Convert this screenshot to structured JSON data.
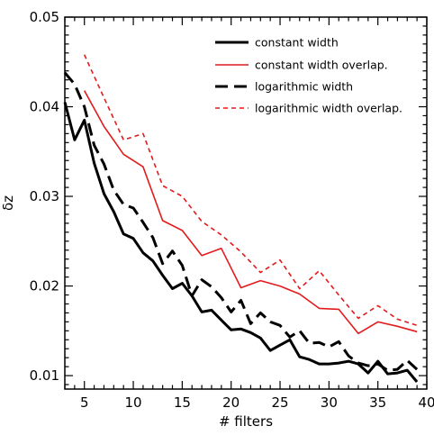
{
  "chart_data": {
    "type": "line",
    "xlabel": "# filters",
    "ylabel": "δz",
    "xlim": [
      3,
      40
    ],
    "ylim": [
      0.0085,
      0.05
    ],
    "xticks": [
      5,
      10,
      15,
      20,
      25,
      30,
      35,
      40
    ],
    "xtick_labels": [
      "5",
      "10",
      "15",
      "20",
      "25",
      "30",
      "35",
      "40"
    ],
    "yticks": [
      0.01,
      0.02,
      0.03,
      0.04,
      0.05
    ],
    "ytick_labels": [
      "0.01",
      "0.02",
      "0.03",
      "0.04",
      "0.05"
    ],
    "grid": false,
    "legend_position": "top-right",
    "series": [
      {
        "name": "constant width",
        "color": "#000000",
        "style": "solid",
        "x": [
          3,
          4,
          5,
          6,
          7,
          8,
          9,
          10,
          11,
          12,
          13,
          14,
          15,
          16,
          17,
          18,
          19,
          20,
          21,
          22,
          23,
          24,
          25,
          26,
          27,
          28,
          29,
          30,
          31,
          32,
          33,
          34,
          35,
          36,
          37,
          38,
          39
        ],
        "y": [
          0.0405,
          0.0363,
          0.0385,
          0.0337,
          0.0303,
          0.0283,
          0.0258,
          0.0253,
          0.0237,
          0.0228,
          0.0212,
          0.0197,
          0.0203,
          0.0189,
          0.0171,
          0.0173,
          0.0162,
          0.0151,
          0.0152,
          0.0148,
          0.0142,
          0.0128,
          0.0134,
          0.014,
          0.0121,
          0.0118,
          0.0113,
          0.0113,
          0.0114,
          0.0116,
          0.0113,
          0.0103,
          0.0116,
          0.0102,
          0.0103,
          0.0106,
          0.0093
        ]
      },
      {
        "name": "constant width overlap.",
        "color": "#e31a1c",
        "style": "solid",
        "x": [
          5,
          7,
          9,
          11,
          13,
          15,
          17,
          19,
          21,
          23,
          25,
          27,
          29,
          31,
          33,
          35,
          37,
          39
        ],
        "y": [
          0.0418,
          0.0378,
          0.0347,
          0.0333,
          0.0273,
          0.0262,
          0.0234,
          0.0242,
          0.0198,
          0.0206,
          0.02,
          0.0191,
          0.0175,
          0.0174,
          0.0147,
          0.016,
          0.0155,
          0.0149
        ]
      },
      {
        "name": "logarithmic width",
        "color": "#000000",
        "style": "longdash",
        "x": [
          3,
          4,
          5,
          6,
          7,
          8,
          9,
          10,
          11,
          12,
          13,
          14,
          15,
          16,
          17,
          18,
          19,
          20,
          21,
          22,
          23,
          24,
          25,
          26,
          27,
          28,
          29,
          30,
          31,
          32,
          33,
          34,
          35,
          36,
          37,
          38,
          39
        ],
        "y": [
          0.0438,
          0.0425,
          0.04,
          0.0357,
          0.0336,
          0.0307,
          0.0291,
          0.0287,
          0.0271,
          0.0254,
          0.0225,
          0.0239,
          0.0223,
          0.0189,
          0.0207,
          0.0199,
          0.0187,
          0.0171,
          0.0184,
          0.0158,
          0.017,
          0.016,
          0.0156,
          0.0143,
          0.015,
          0.0136,
          0.0137,
          0.0132,
          0.0138,
          0.0122,
          0.0114,
          0.0111,
          0.0113,
          0.0106,
          0.0107,
          0.0117,
          0.0107
        ]
      },
      {
        "name": "logarithmic width overlap.",
        "color": "#e31a1c",
        "style": "shortdash",
        "x": [
          5,
          7,
          9,
          11,
          13,
          15,
          17,
          19,
          21,
          23,
          25,
          27,
          29,
          31,
          33,
          35,
          37,
          39
        ],
        "y": [
          0.0458,
          0.041,
          0.0363,
          0.037,
          0.0312,
          0.03,
          0.0272,
          0.0257,
          0.0238,
          0.0215,
          0.0229,
          0.0197,
          0.0217,
          0.019,
          0.0164,
          0.0178,
          0.0163,
          0.0156
        ]
      }
    ]
  }
}
